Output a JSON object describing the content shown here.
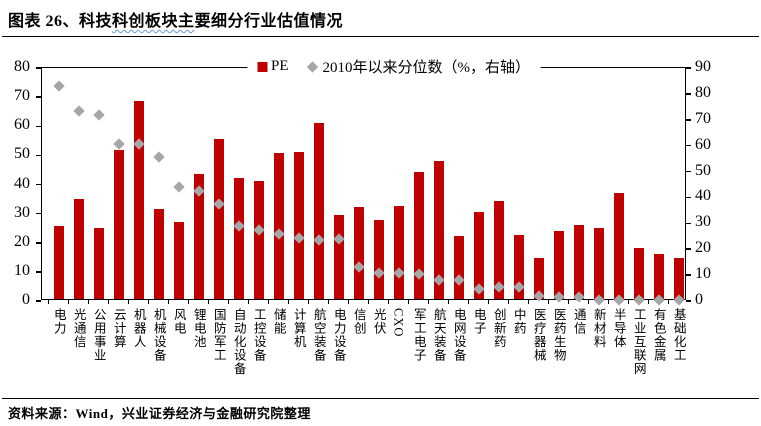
{
  "header": {
    "title_prefix": "图表 26、科技",
    "title_wavy": "科创板块主",
    "title_suffix": "要细分行业估值情况"
  },
  "footer": {
    "source": "资料来源：Wind，兴业证券经济与金融研究院整理"
  },
  "chart_data": {
    "type": "bar",
    "subtype": "bar + scatter combo, dual axis",
    "title": "科技科创板块主要细分行业估值情况",
    "categories": [
      "电力",
      "光通信",
      "公用事业",
      "云计算",
      "机器人",
      "机械设备",
      "风电",
      "锂电池",
      "国防军工",
      "自动化设备",
      "工控设备",
      "储能",
      "计算机",
      "航空装备",
      "电力设备",
      "信创",
      "光伏",
      "CXO",
      "军工电子",
      "航天装备",
      "电网设备",
      "电子",
      "创新药",
      "中药",
      "医疗器械",
      "医药生物",
      "通信",
      "新材料",
      "半导体",
      "工业互联网",
      "有色金属",
      "基础化工"
    ],
    "series": [
      {
        "name": "PE",
        "type": "bar",
        "axis": "left",
        "color": "#c00000",
        "values": [
          25,
          34.5,
          24.5,
          51,
          68,
          31,
          26.5,
          43,
          55,
          41.5,
          40.5,
          50,
          50.5,
          60.5,
          29,
          31.5,
          27,
          32,
          43.5,
          47.5,
          21.5,
          30,
          33.5,
          22,
          14,
          23.5,
          25.5,
          24.5,
          36.5,
          17.5,
          15.5,
          14
        ]
      },
      {
        "name": "2010年以来分位数（%，右轴）",
        "type": "scatter-diamond",
        "axis": "right",
        "color": "#a6a6a6",
        "values": [
          83,
          73.5,
          72,
          60.5,
          60.5,
          55.5,
          44,
          42.5,
          37.5,
          29,
          27.5,
          26,
          24.5,
          23.5,
          24,
          13,
          11,
          11,
          10.5,
          8,
          8,
          4.5,
          5.5,
          5.5,
          2,
          1.5,
          1.5,
          0.5,
          0.5,
          0.5,
          0.5,
          0.2
        ]
      }
    ],
    "left_axis": {
      "min": 0,
      "max": 80,
      "step": 10,
      "ticks": [
        0,
        10,
        20,
        30,
        40,
        50,
        60,
        70,
        80
      ]
    },
    "right_axis": {
      "min": 0,
      "max": 90,
      "step": 10,
      "ticks": [
        0,
        10,
        20,
        30,
        40,
        50,
        60,
        70,
        80,
        90
      ]
    },
    "legend": [
      {
        "label": "PE",
        "marker": "square",
        "color": "#c00000"
      },
      {
        "label": "2010年以来分位数（%，右轴）",
        "marker": "diamond",
        "color": "#a6a6a6"
      }
    ],
    "grid": false,
    "legend_position": "top-center"
  }
}
